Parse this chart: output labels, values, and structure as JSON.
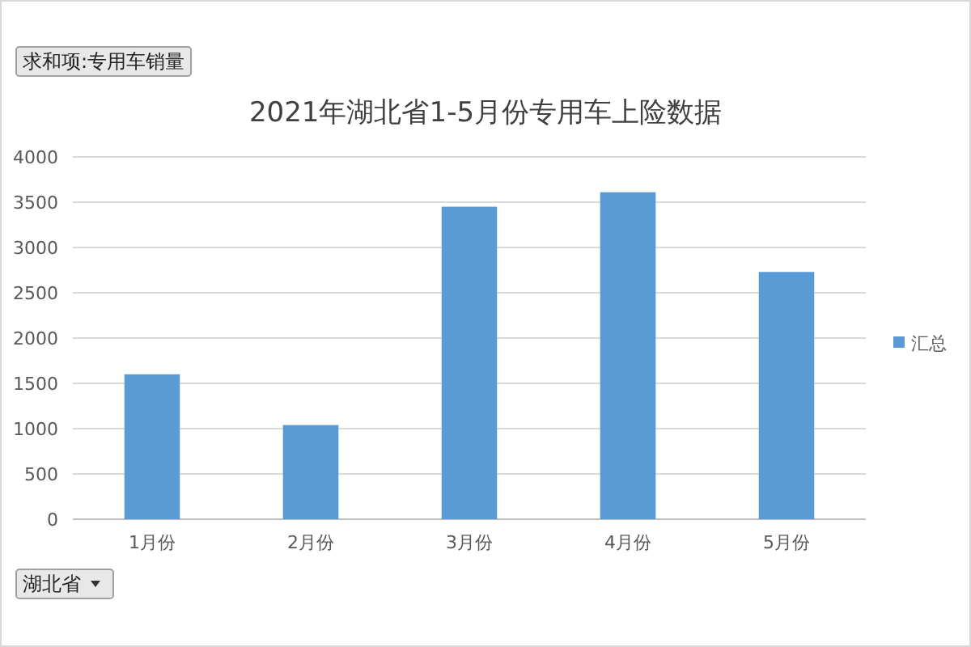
{
  "chart_data": {
    "type": "bar",
    "title": "2021年湖北省1-5月份专用车上险数据",
    "categories": [
      "1月份",
      "2月份",
      "3月份",
      "4月份",
      "5月份"
    ],
    "series": [
      {
        "name": "汇总",
        "color": "#5b9bd5",
        "values": [
          1600,
          1040,
          3450,
          3610,
          2730
        ]
      }
    ],
    "ylim": [
      0,
      4000
    ],
    "yticks": [
      0,
      500,
      1000,
      1500,
      2000,
      2500,
      3000,
      3500,
      4000
    ],
    "grid": "y",
    "legend": "right",
    "annotations": [
      "求和项:专用车销量",
      "湖北省"
    ]
  }
}
